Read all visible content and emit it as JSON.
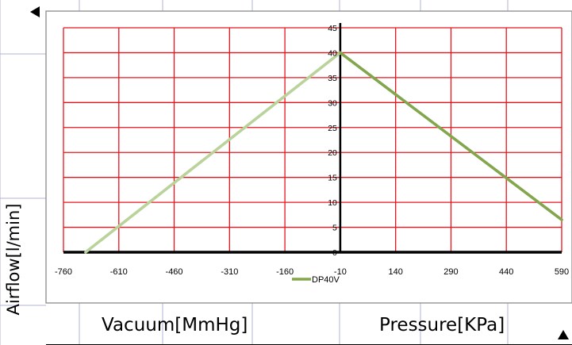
{
  "chart_data": {
    "type": "line",
    "xlabel_left": "Vacuum[MmHg]",
    "xlabel_right": "Pressure[KPa]",
    "ylabel": "Airflow[l/min]",
    "x_ticks": [
      "-760",
      "-610",
      "-460",
      "-310",
      "-160",
      "-10",
      "140",
      "290",
      "440",
      "590"
    ],
    "y_ticks": [
      0,
      5,
      10,
      15,
      20,
      25,
      30,
      35,
      40,
      45
    ],
    "xlim": [
      -760,
      590
    ],
    "ylim": [
      0,
      45
    ],
    "grid": true,
    "grid_color": "#e8141b",
    "legend_position": "bottom-center",
    "series": [
      {
        "name": "DP40V",
        "segments": [
          {
            "side": "vacuum",
            "color": "#b9d39a",
            "points": [
              [
                -700,
                0
              ],
              [
                -10,
                40
              ]
            ]
          },
          {
            "side": "pressure",
            "color": "#82a64d",
            "points": [
              [
                -10,
                40
              ],
              [
                590,
                6.5
              ]
            ]
          }
        ]
      }
    ]
  }
}
